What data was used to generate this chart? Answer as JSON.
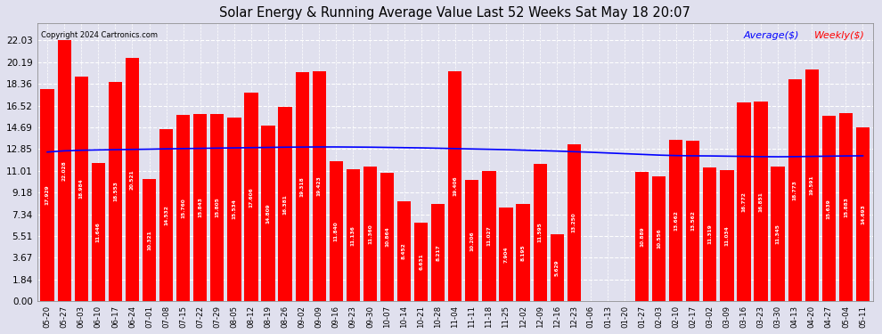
{
  "title": "Solar Energy & Running Average Value Last 52 Weeks Sat May 18 20:07",
  "copyright": "Copyright 2024 Cartronics.com",
  "legend_avg": "Average($)",
  "legend_weekly": "Weekly($)",
  "bar_color": "#ff0000",
  "avg_line_color": "#0000ff",
  "background_color": "#e0e0ee",
  "yticks": [
    0.0,
    1.84,
    3.67,
    5.51,
    7.34,
    9.18,
    11.01,
    12.85,
    14.69,
    16.52,
    18.36,
    20.19,
    22.03
  ],
  "categories": [
    "05-20",
    "05-27",
    "06-03",
    "06-10",
    "06-17",
    "06-24",
    "07-01",
    "07-08",
    "07-15",
    "07-22",
    "07-29",
    "08-05",
    "08-12",
    "08-19",
    "08-26",
    "09-02",
    "09-09",
    "09-16",
    "09-23",
    "09-30",
    "10-07",
    "10-14",
    "10-21",
    "10-28",
    "11-04",
    "11-11",
    "11-18",
    "11-25",
    "12-02",
    "12-09",
    "12-16",
    "12-23",
    "01-06",
    "01-13",
    "01-20",
    "01-27",
    "02-03",
    "02-10",
    "02-17",
    "03-02",
    "03-09",
    "03-16",
    "03-23",
    "03-30",
    "04-13",
    "04-20",
    "04-27",
    "05-04",
    "05-11"
  ],
  "values": [
    17.929,
    22.028,
    18.984,
    11.646,
    18.553,
    20.521,
    10.321,
    14.532,
    15.76,
    15.843,
    15.805,
    15.534,
    17.606,
    14.809,
    16.381,
    19.318,
    19.423,
    11.84,
    11.136,
    11.36,
    10.864,
    8.452,
    6.631,
    8.217,
    19.406,
    10.206,
    11.027,
    7.904,
    8.195,
    11.595,
    5.629,
    13.25,
    0.0,
    0.0,
    0.013,
    10.889,
    10.556,
    13.662,
    13.562,
    11.319,
    11.034,
    16.772,
    16.851,
    11.345,
    18.773,
    19.591,
    15.639,
    15.883,
    14.693
  ],
  "avg_values": [
    12.6,
    12.7,
    12.75,
    12.78,
    12.8,
    12.82,
    12.84,
    12.87,
    12.89,
    12.91,
    12.93,
    12.95,
    12.97,
    12.99,
    13.01,
    13.02,
    13.03,
    13.03,
    13.02,
    13.01,
    12.99,
    12.97,
    12.95,
    12.92,
    12.89,
    12.86,
    12.83,
    12.8,
    12.76,
    12.72,
    12.68,
    12.63,
    12.58,
    12.52,
    12.46,
    12.4,
    12.34,
    12.3,
    12.28,
    12.27,
    12.25,
    12.23,
    12.21,
    12.2,
    12.21,
    12.23,
    12.25,
    12.27,
    12.28
  ]
}
